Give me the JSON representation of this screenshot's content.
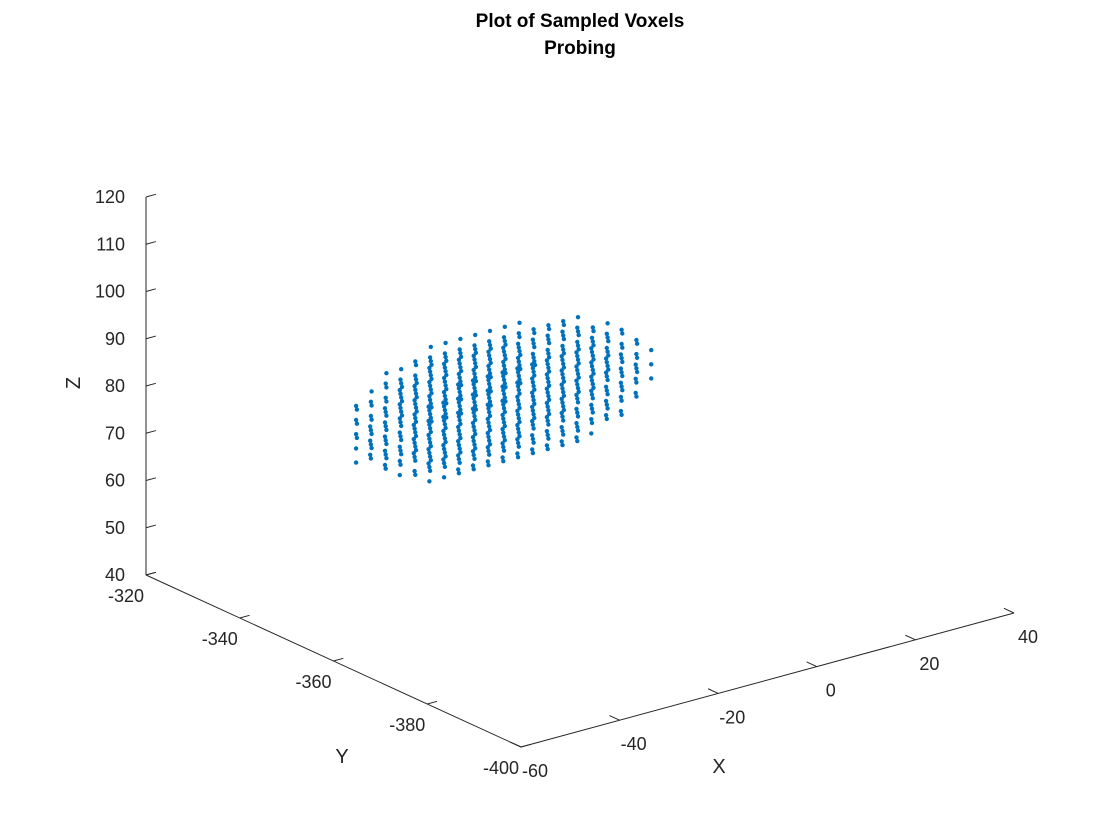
{
  "chart_data": {
    "type": "scatter",
    "title": [
      "Plot of Sampled Voxels",
      "Probing"
    ],
    "xlabel": "X",
    "ylabel": "Y",
    "zlabel": "Z",
    "xlim": [
      -60,
      40
    ],
    "ylim": [
      -400,
      -320
    ],
    "zlim": [
      40,
      120
    ],
    "xticks": [
      "-60",
      "-40",
      "-20",
      "0",
      "20",
      "40"
    ],
    "yticks": [
      "-320",
      "-340",
      "-360",
      "-380",
      "-400"
    ],
    "zticks": [
      "40",
      "50",
      "60",
      "70",
      "80",
      "90",
      "100",
      "110",
      "120"
    ],
    "grid": false,
    "marker_color": "#0072BD",
    "series": [
      {
        "shape": "ellipsoid",
        "center": [
          -16,
          -349,
          78
        ],
        "semi_axes": [
          31,
          8,
          15
        ],
        "spacing": 3
      }
    ]
  }
}
